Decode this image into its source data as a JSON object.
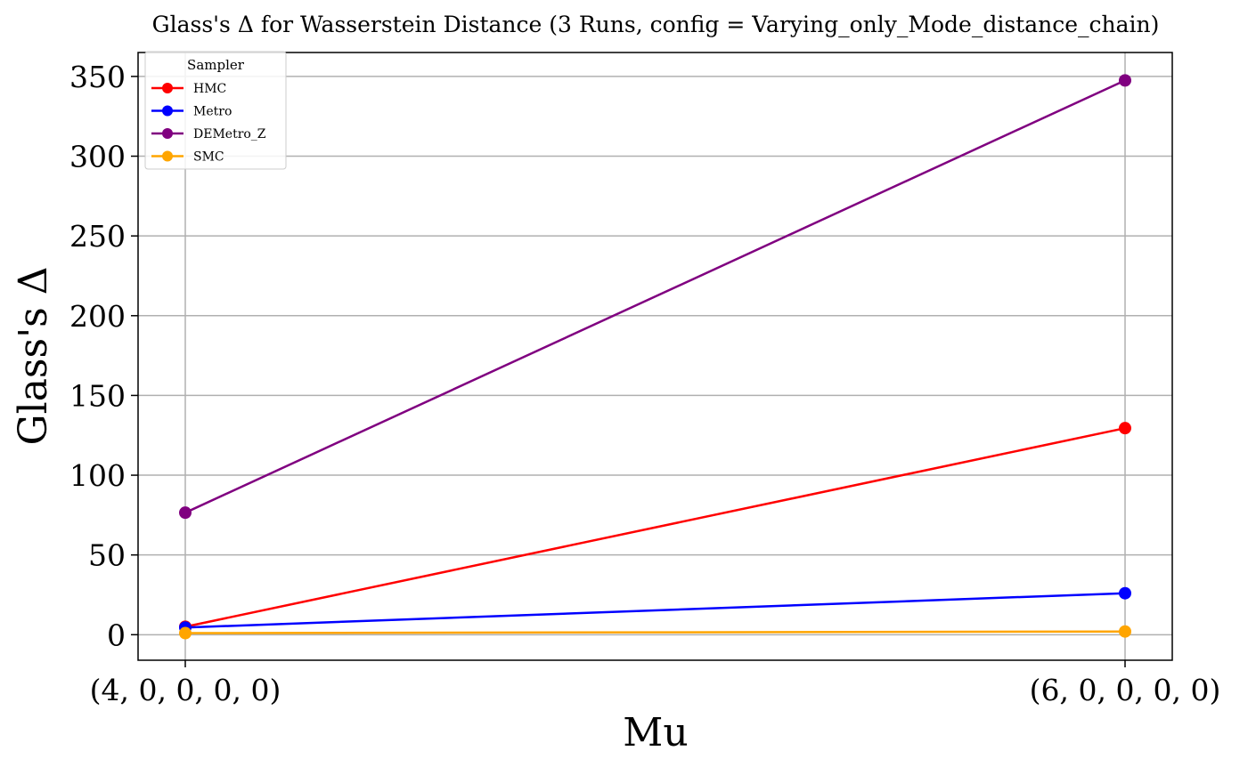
{
  "chart_data": {
    "type": "line",
    "title": "Glass's Δ for Wasserstein Distance (3 Runs, config = Varying_only_Mode_distance_chain)",
    "xlabel": "Mu",
    "ylabel": "Glass's Δ",
    "categories": [
      "(4, 0, 0, 0, 0)",
      "(6, 0, 0, 0, 0)"
    ],
    "yticks": [
      0,
      50,
      100,
      150,
      200,
      250,
      300,
      350
    ],
    "ylim": [
      -16,
      365
    ],
    "grid": true,
    "legend": {
      "title": "Sampler",
      "placement": "top-left"
    },
    "series": [
      {
        "name": "HMC",
        "color": "#ff0000",
        "values": [
          5,
          129.5
        ]
      },
      {
        "name": "Metro",
        "color": "#0000ff",
        "values": [
          4.5,
          26
        ]
      },
      {
        "name": "DEMetro_Z",
        "color": "#800080",
        "values": [
          76.5,
          347.5
        ]
      },
      {
        "name": "SMC",
        "color": "#ffa500",
        "values": [
          1,
          2
        ]
      }
    ]
  }
}
